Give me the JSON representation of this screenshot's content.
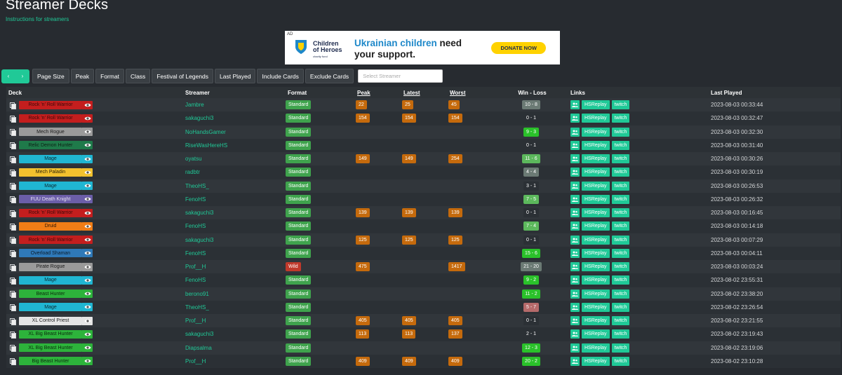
{
  "page": {
    "title": "Streamer Decks",
    "subtitle_link": "Instructions for streamers"
  },
  "ad": {
    "tag": "AD",
    "org_line1": "Children",
    "org_line2": "of Heroes",
    "org_line3": "charity fund",
    "headline_highlight": "Ukrainian children",
    "headline_rest1": " need",
    "headline_rest2": "your support.",
    "button": "DONATE NOW"
  },
  "toolbar": {
    "prev": "‹",
    "next": "›",
    "buttons": [
      "Page Size",
      "Peak",
      "Format",
      "Class",
      "Festival of Legends",
      "Last Played",
      "Include Cards",
      "Exclude Cards"
    ],
    "search_placeholder": "Select Streamer"
  },
  "table": {
    "headers": [
      "Deck",
      "Streamer",
      "Format",
      "Peak",
      "Latest",
      "Worst",
      "Win - Loss",
      "Links",
      "Last Played"
    ],
    "link_labels": [
      "HSReplay",
      "twitch"
    ],
    "class_colors": {
      "Warrior": {
        "bg": "#c41e1e",
        "fg": "#3a0a0a",
        "eye": "#c41e1e"
      },
      "Rogue": {
        "bg": "#9a9a9a",
        "fg": "#1c1c1c",
        "eye": "#9a9a9a"
      },
      "Demon Hunter": {
        "bg": "#1f7a4a",
        "fg": "#0c1f14",
        "eye": "#1f7a4a"
      },
      "Mage": {
        "bg": "#20b6d2",
        "fg": "#0c2a33",
        "eye": "#20b6d2"
      },
      "Paladin": {
        "bg": "#f2c12e",
        "fg": "#2e2406",
        "eye": "#f2c12e"
      },
      "Death Knight": {
        "bg": "#6b5ea8",
        "fg": "#e6e3f3",
        "eye": "#6b5ea8"
      },
      "Druid": {
        "bg": "#f07d16",
        "fg": "#2e1604",
        "eye": "#f07d16"
      },
      "Shaman": {
        "bg": "#2f79b8",
        "fg": "#0b1c2b",
        "eye": "#2f79b8"
      },
      "Hunter": {
        "bg": "#2db33b",
        "fg": "#0a2a0d",
        "eye": "#2db33b"
      },
      "Priest": {
        "bg": "#e5e5e5",
        "fg": "#222222",
        "eye": "#e5e5e5"
      }
    },
    "wl_colors": {
      "dark": "#6b7a74",
      "green": "#5cb85c",
      "bright": "#2ac12a",
      "neutral": "#2b3035",
      "red": "#b56a6a"
    },
    "rows": [
      {
        "deck": "Rock 'n' Roll Warrior",
        "cls": "Warrior",
        "streamer": "Jambre",
        "format": "Standard",
        "peak": "22",
        "latest": "25",
        "worst": "45",
        "wl": "10 - 8",
        "wlc": "dark",
        "played": "2023-08-03 00:33:44"
      },
      {
        "deck": "Rock 'n' Roll Warrior",
        "cls": "Warrior",
        "streamer": "sakaguchi3",
        "format": "Standard",
        "peak": "154",
        "latest": "154",
        "worst": "154",
        "wl": "0 - 1",
        "wlc": "neutral",
        "played": "2023-08-03 00:32:47"
      },
      {
        "deck": "Mech Rogue",
        "cls": "Rogue",
        "streamer": "NoHandsGamer",
        "format": "Standard",
        "peak": "",
        "latest": "",
        "worst": "",
        "wl": "9 - 3",
        "wlc": "bright",
        "played": "2023-08-03 00:32:30"
      },
      {
        "deck": "Relic Demon Hunter",
        "cls": "Demon Hunter",
        "streamer": "RiseWasHereHS",
        "format": "Standard",
        "peak": "",
        "latest": "",
        "worst": "",
        "wl": "0 - 1",
        "wlc": "neutral",
        "played": "2023-08-03 00:31:40"
      },
      {
        "deck": "Mage",
        "cls": "Mage",
        "streamer": "oyatsu",
        "format": "Standard",
        "peak": "149",
        "latest": "149",
        "worst": "254",
        "wl": "11 - 6",
        "wlc": "green",
        "played": "2023-08-03 00:30:26"
      },
      {
        "deck": "Mech Paladin",
        "cls": "Paladin",
        "streamer": "radbtr",
        "format": "Standard",
        "peak": "",
        "latest": "",
        "worst": "",
        "wl": "4 - 4",
        "wlc": "dark",
        "played": "2023-08-03 00:30:19"
      },
      {
        "deck": "Mage",
        "cls": "Mage",
        "streamer": "TheoHS_",
        "format": "Standard",
        "peak": "",
        "latest": "",
        "worst": "",
        "wl": "3 - 1",
        "wlc": "neutral",
        "played": "2023-08-03 00:26:53"
      },
      {
        "deck": "FUU Death Knight",
        "cls": "Death Knight",
        "streamer": "FenoHS",
        "format": "Standard",
        "peak": "",
        "latest": "",
        "worst": "",
        "wl": "7 - 5",
        "wlc": "green",
        "played": "2023-08-03 00:26:32"
      },
      {
        "deck": "Rock 'n' Roll Warrior",
        "cls": "Warrior",
        "streamer": "sakaguchi3",
        "format": "Standard",
        "peak": "139",
        "latest": "139",
        "worst": "139",
        "wl": "0 - 1",
        "wlc": "neutral",
        "played": "2023-08-03 00:16:45"
      },
      {
        "deck": "Druid",
        "cls": "Druid",
        "streamer": "FenoHS",
        "format": "Standard",
        "peak": "",
        "latest": "",
        "worst": "",
        "wl": "7 - 4",
        "wlc": "green",
        "played": "2023-08-03 00:14:18"
      },
      {
        "deck": "Rock 'n' Roll Warrior",
        "cls": "Warrior",
        "streamer": "sakaguchi3",
        "format": "Standard",
        "peak": "125",
        "latest": "125",
        "worst": "125",
        "wl": "0 - 1",
        "wlc": "neutral",
        "played": "2023-08-03 00:07:29"
      },
      {
        "deck": "Overload Shaman",
        "cls": "Shaman",
        "streamer": "FenoHS",
        "format": "Standard",
        "peak": "",
        "latest": "",
        "worst": "",
        "wl": "15 - 6",
        "wlc": "bright",
        "played": "2023-08-03 00:04:11"
      },
      {
        "deck": "Pirate Rogue",
        "cls": "Rogue",
        "streamer": "Prof__H",
        "format": "Wild",
        "peak": "475",
        "latest": "",
        "worst": "1417",
        "wl": "21 - 20",
        "wlc": "dark",
        "played": "2023-08-03 00:03:24"
      },
      {
        "deck": "Mage",
        "cls": "Mage",
        "streamer": "FenoHS",
        "format": "Standard",
        "peak": "",
        "latest": "",
        "worst": "",
        "wl": "9 - 2",
        "wlc": "bright",
        "played": "2023-08-02 23:55:31"
      },
      {
        "deck": "Beast Hunter",
        "cls": "Hunter",
        "streamer": "berono91",
        "format": "Standard",
        "peak": "",
        "latest": "",
        "worst": "",
        "wl": "11 - 2",
        "wlc": "bright",
        "played": "2023-08-02 23:38:20"
      },
      {
        "deck": "Mage",
        "cls": "Mage",
        "streamer": "TheoHS_",
        "format": "Standard",
        "peak": "",
        "latest": "",
        "worst": "",
        "wl": "5 - 7",
        "wlc": "red",
        "played": "2023-08-02 23:26:54"
      },
      {
        "deck": "XL Control Priest",
        "cls": "Priest",
        "streamer": "Prof__H",
        "format": "Standard",
        "peak": "405",
        "latest": "405",
        "worst": "405",
        "wl": "0 - 1",
        "wlc": "neutral",
        "played": "2023-08-02 23:21:55"
      },
      {
        "deck": "XL Big Beast Hunter",
        "cls": "Hunter",
        "streamer": "sakaguchi3",
        "format": "Standard",
        "peak": "113",
        "latest": "113",
        "worst": "137",
        "wl": "2 - 1",
        "wlc": "neutral",
        "played": "2023-08-02 23:19:43"
      },
      {
        "deck": "XL Big Beast Hunter",
        "cls": "Hunter",
        "streamer": "Diapsalma",
        "format": "Standard",
        "peak": "",
        "latest": "",
        "worst": "",
        "wl": "12 - 3",
        "wlc": "bright",
        "played": "2023-08-02 23:19:06"
      },
      {
        "deck": "Big Beast Hunter",
        "cls": "Hunter",
        "streamer": "Prof__H",
        "format": "Standard",
        "peak": "409",
        "latest": "409",
        "worst": "409",
        "wl": "20 - 2",
        "wlc": "bright",
        "played": "2023-08-02 23:10:28"
      }
    ]
  }
}
